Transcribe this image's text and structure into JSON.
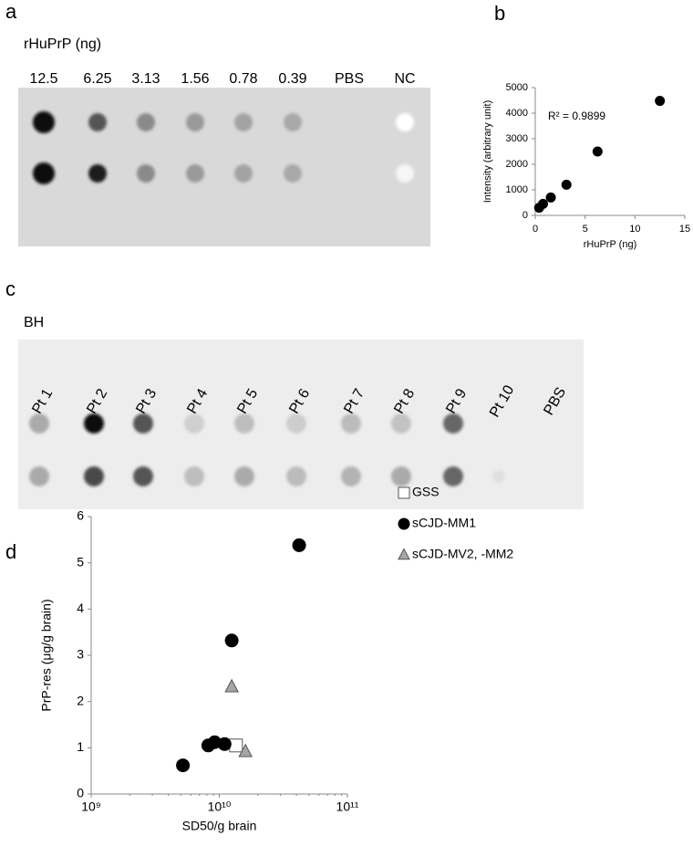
{
  "panel_labels": [
    "a",
    "b",
    "c",
    "d"
  ],
  "blot_a": {
    "title": "rHuPrP (ng)",
    "lanes": [
      "12.5",
      "6.25",
      "3.13",
      "1.56",
      "0.78",
      "0.39",
      "PBS",
      "NC"
    ]
  },
  "blot_c": {
    "title": "BH",
    "lanes": [
      "Pt 1",
      "Pt 2",
      "Pt 3",
      "Pt 4",
      "Pt 5",
      "Pt 6",
      "Pt 7",
      "Pt 8",
      "Pt 9",
      "Pt 10",
      "PBS"
    ]
  },
  "chart_data": [
    {
      "type": "scatter",
      "xlabel": "rHuPrP (ng)",
      "ylabel": "Intensity (arbitrary unit)",
      "annotation": "R² = 0.9899",
      "xlim": [
        0,
        15
      ],
      "xticks": [
        0,
        5,
        10,
        15
      ],
      "ylim": [
        0,
        5000
      ],
      "yticks": [
        0,
        1000,
        2000,
        3000,
        4000,
        5000
      ],
      "series": [
        {
          "color": "#000000",
          "marker": "circle",
          "x": [
            0.39,
            0.78,
            1.56,
            3.13,
            6.25,
            12.5
          ],
          "values": [
            300,
            450,
            700,
            1200,
            2500,
            4480
          ]
        }
      ]
    },
    {
      "type": "scatter",
      "xlabel": "SD50/g brain",
      "ylabel": "PrP-res (μg/g brain)",
      "xscale": "log",
      "xlim": [
        1000000000,
        100000000000
      ],
      "xticks": [
        {
          "value": 1000000000,
          "label": "10⁹"
        },
        {
          "value": 10000000000,
          "label": "10¹⁰"
        },
        {
          "value": 100000000000,
          "label": "10¹¹"
        }
      ],
      "ylim": [
        0,
        6
      ],
      "yticks": [
        0,
        1,
        2,
        3,
        4,
        5,
        6
      ],
      "legend": "right",
      "series": [
        {
          "name": "GSS",
          "color": "#ffffff",
          "marker": "square",
          "x": [
            13500000000
          ],
          "values": [
            1.05
          ]
        },
        {
          "name": "sCJD-MM1",
          "color": "#000000",
          "marker": "circle",
          "x": [
            5200000000,
            8200000000,
            9200000000,
            11000000000,
            12500000000,
            42000000000
          ],
          "values": [
            0.62,
            1.05,
            1.12,
            1.08,
            3.32,
            5.38
          ]
        },
        {
          "name": "sCJD-MV2, -MM2",
          "color": "#a6a6a6",
          "marker": "triangle",
          "x": [
            12500000000,
            16000000000
          ],
          "values": [
            2.32,
            0.92
          ]
        }
      ]
    }
  ]
}
